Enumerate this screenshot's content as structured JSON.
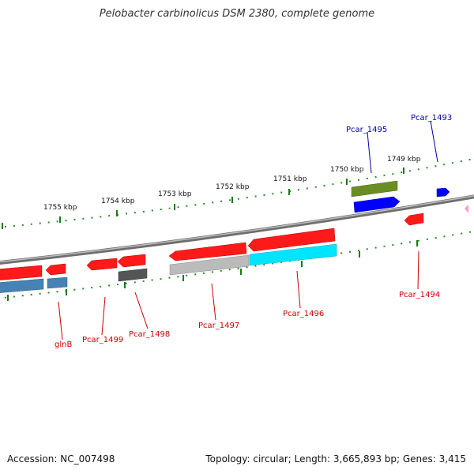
{
  "title": "Pelobacter carbinolicus DSM 2380, complete genome",
  "footer": {
    "accession": "Accession: NC_007498",
    "summary": "Topology: circular; Length: 3,665,893 bp; Genes: 3,415"
  },
  "scale_labels": [
    "1749 kbp",
    "1750 kbp",
    "1751 kbp",
    "1752 kbp",
    "1753 kbp",
    "1754 kbp",
    "1755 kbp"
  ],
  "gene_labels": [
    {
      "name": "Pcar_1493",
      "color": "#0000aa"
    },
    {
      "name": "Pcar_1495",
      "color": "#0000aa"
    },
    {
      "name": "Pcar_1494",
      "color": "#cc0000"
    },
    {
      "name": "Pcar_1496",
      "color": "#cc0000"
    },
    {
      "name": "Pcar_1497",
      "color": "#cc0000"
    },
    {
      "name": "Pcar_1498",
      "color": "#cc0000"
    },
    {
      "name": "Pcar_1499",
      "color": "#cc0000"
    },
    {
      "name": "glnB",
      "color": "#cc0000"
    }
  ],
  "colors": {
    "backbone": "#808080",
    "ticks": "#1a7a1a",
    "red": "#ff1a1a",
    "blue": "#0000ff",
    "steelblue": "#4682b4",
    "olive": "#6b8e23",
    "cyan": "#00e5ff",
    "gray_dark": "#555555",
    "gray_light": "#bbbbbb",
    "pink": "#ff99cc"
  }
}
